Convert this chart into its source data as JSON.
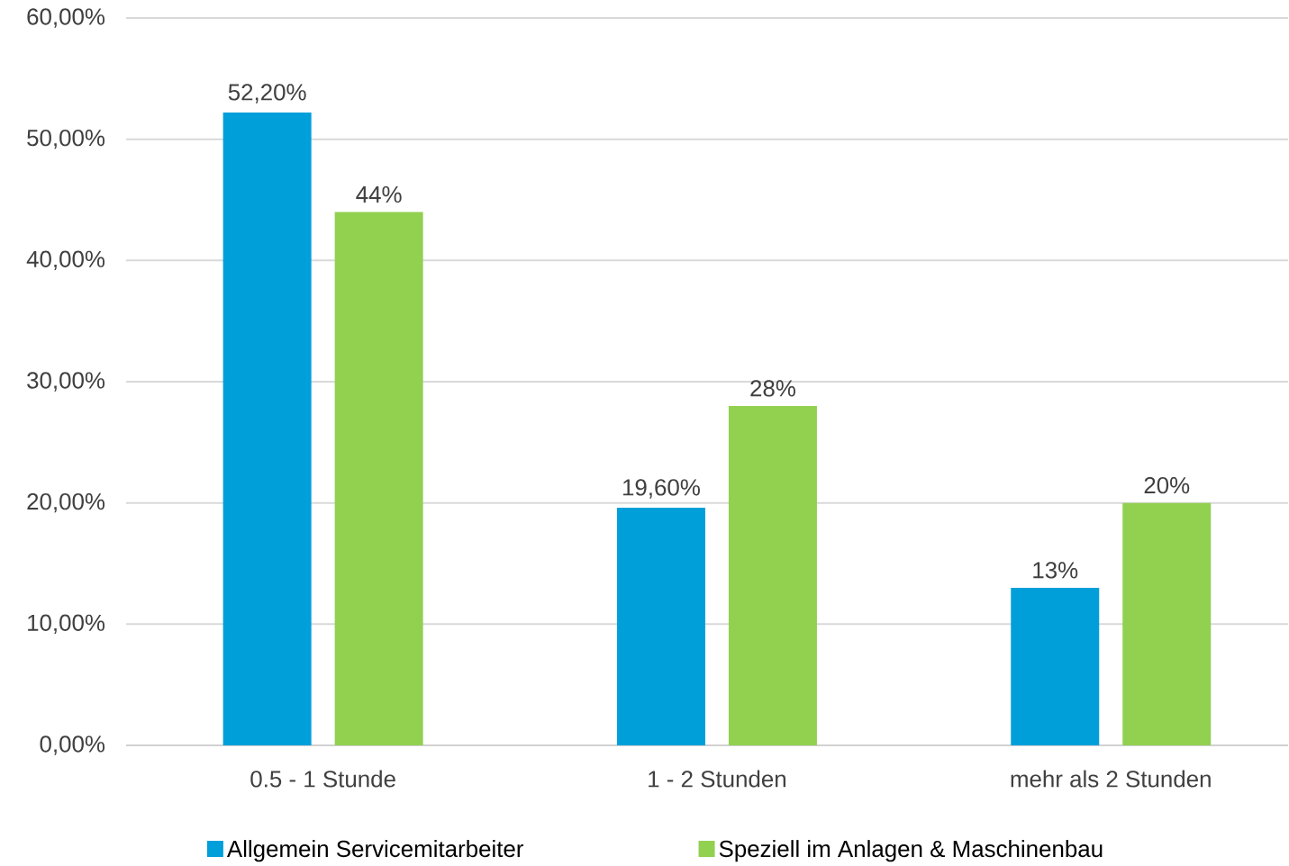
{
  "chart_data": {
    "type": "bar",
    "categories": [
      "0.5 - 1 Stunde",
      "1 - 2 Stunden",
      "mehr als 2 Stunden"
    ],
    "series": [
      {
        "name": "Allgemein Servicemitarbeiter",
        "color": "#009fda",
        "values": [
          52.2,
          19.6,
          13
        ],
        "value_labels": [
          "52,20%",
          "19,60%",
          "13%"
        ]
      },
      {
        "name": "Speziell im Anlagen & Maschinenbau",
        "color": "#92d050",
        "values": [
          44,
          28,
          20
        ],
        "value_labels": [
          "44%",
          "28%",
          "20%"
        ]
      }
    ],
    "ylim": [
      0,
      60
    ],
    "yticks": [
      {
        "value": 0,
        "label": "0,00%"
      },
      {
        "value": 10,
        "label": "10,00%"
      },
      {
        "value": 20,
        "label": "20,00%"
      },
      {
        "value": 30,
        "label": "30,00%"
      },
      {
        "value": 40,
        "label": "40,00%"
      },
      {
        "value": 50,
        "label": "50,00%"
      },
      {
        "value": 60,
        "label": "60,00%"
      }
    ],
    "grid": "y",
    "legend": "bottom"
  }
}
